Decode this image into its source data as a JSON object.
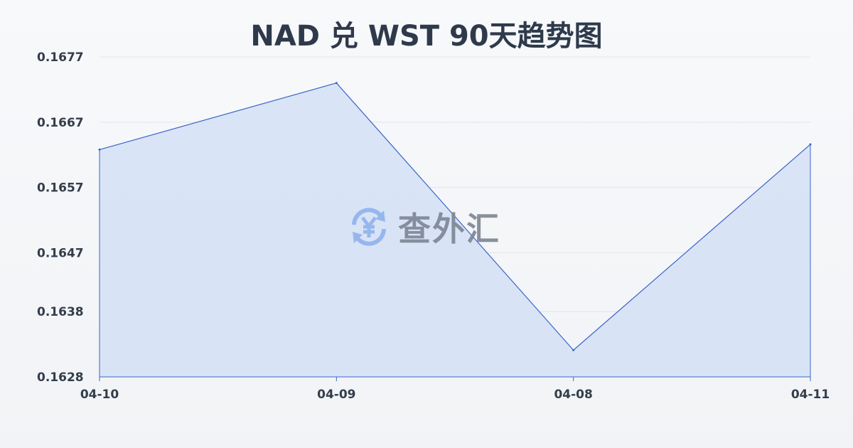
{
  "chart_data": {
    "type": "area",
    "title": "NAD 兑 WST 90天趋势图",
    "xlabel": "",
    "ylabel": "",
    "categories": [
      "04-10",
      "04-09",
      "04-08",
      "04-11"
    ],
    "values": [
      0.16628,
      0.1673,
      0.16321,
      0.16636
    ],
    "yticks": [
      "0.1628",
      "0.1638",
      "0.1647",
      "0.1657",
      "0.1667",
      "0.1677"
    ],
    "ylim": [
      0.1628,
      0.1677
    ],
    "grid": true,
    "colors": {
      "line": "#3a66c8",
      "fill": "#d6e1f5",
      "grid": "#e3e6ea"
    }
  },
  "watermark": {
    "text": "查外汇",
    "icon": "yen-exchange-icon",
    "color": "#8fb3ee"
  }
}
